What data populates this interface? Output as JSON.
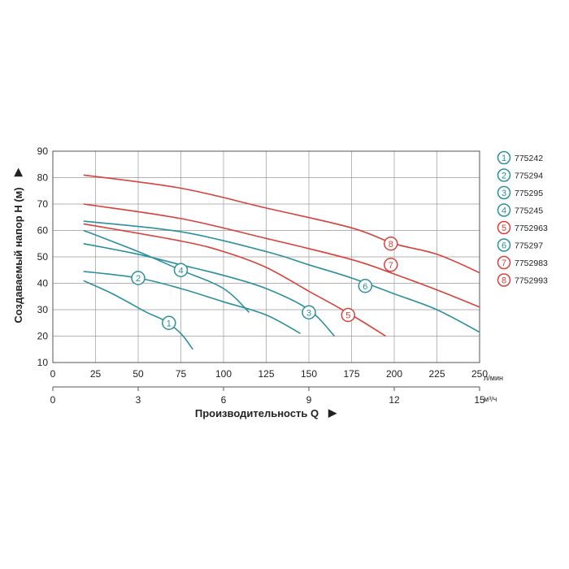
{
  "chart_data": {
    "type": "line",
    "ylabel": "Создаваемый напор H (м)",
    "xlabel": "Производительность Q",
    "x_unit_primary": "л/мин",
    "x_unit_secondary": "м³/ч",
    "arrow_symbol": "▶",
    "xlim": [
      0,
      250
    ],
    "ylim": [
      10,
      90
    ],
    "grid": true,
    "legend_position": "right",
    "y_ticks": [
      "10",
      "20",
      "30",
      "40",
      "50",
      "60",
      "70",
      "80",
      "90"
    ],
    "x_ticks_primary": [
      "0",
      "25",
      "50",
      "75",
      "100",
      "125",
      "150",
      "175",
      "200",
      "225",
      "250"
    ],
    "x_ticks_secondary": [
      "0",
      "3",
      "6",
      "9",
      "12",
      "15"
    ],
    "colors": {
      "teal": "#2c8f9e",
      "red": "#d8423a",
      "grid": "#9a9a9a"
    },
    "series": [
      {
        "name": "775242",
        "label": "1",
        "color": "#2c8f9e",
        "points": [
          [
            18,
            41
          ],
          [
            35,
            36
          ],
          [
            55,
            29
          ],
          [
            65,
            26
          ],
          [
            75,
            21
          ],
          [
            82,
            15
          ]
        ],
        "label_at": [
          68,
          25
        ]
      },
      {
        "name": "775294",
        "label": "2",
        "color": "#2c8f9e",
        "points": [
          [
            18,
            44.5
          ],
          [
            50,
            42
          ],
          [
            75,
            38
          ],
          [
            100,
            33
          ],
          [
            125,
            28
          ],
          [
            145,
            21
          ]
        ],
        "label_at": [
          50,
          42
        ]
      },
      {
        "name": "775295",
        "label": "3",
        "color": "#2c8f9e",
        "points": [
          [
            18,
            55
          ],
          [
            50,
            51
          ],
          [
            75,
            47
          ],
          [
            100,
            43
          ],
          [
            125,
            38
          ],
          [
            150,
            30
          ],
          [
            165,
            20
          ]
        ],
        "label_at": [
          150,
          29
        ]
      },
      {
        "name": "775245",
        "label": "4",
        "color": "#2c8f9e",
        "points": [
          [
            18,
            60
          ],
          [
            50,
            52
          ],
          [
            75,
            45
          ],
          [
            100,
            38
          ],
          [
            115,
            29
          ]
        ],
        "label_at": [
          75,
          45
        ]
      },
      {
        "name": "7752963",
        "label": "5",
        "color": "#d8423a",
        "points": [
          [
            18,
            62.5
          ],
          [
            75,
            56
          ],
          [
            100,
            52
          ],
          [
            125,
            46
          ],
          [
            150,
            37
          ],
          [
            175,
            28
          ],
          [
            195,
            20
          ]
        ],
        "label_at": [
          173,
          28
        ]
      },
      {
        "name": "775297",
        "label": "6",
        "color": "#2c8f9e",
        "points": [
          [
            18,
            63.5
          ],
          [
            75,
            59.5
          ],
          [
            125,
            52
          ],
          [
            150,
            47
          ],
          [
            175,
            42
          ],
          [
            200,
            36
          ],
          [
            225,
            30
          ],
          [
            250,
            21.5
          ]
        ],
        "label_at": [
          183,
          39
        ]
      },
      {
        "name": "7752983",
        "label": "7",
        "color": "#d8423a",
        "points": [
          [
            18,
            70
          ],
          [
            75,
            64.5
          ],
          [
            125,
            57
          ],
          [
            175,
            49
          ],
          [
            200,
            43.5
          ],
          [
            225,
            37.5
          ],
          [
            250,
            31
          ]
        ],
        "label_at": [
          198,
          47
        ]
      },
      {
        "name": "7752993",
        "label": "8",
        "color": "#d8423a",
        "points": [
          [
            18,
            81
          ],
          [
            75,
            76
          ],
          [
            125,
            68.5
          ],
          [
            175,
            61
          ],
          [
            200,
            55
          ],
          [
            225,
            51
          ],
          [
            250,
            44
          ]
        ],
        "label_at": [
          198,
          55
        ]
      }
    ]
  }
}
